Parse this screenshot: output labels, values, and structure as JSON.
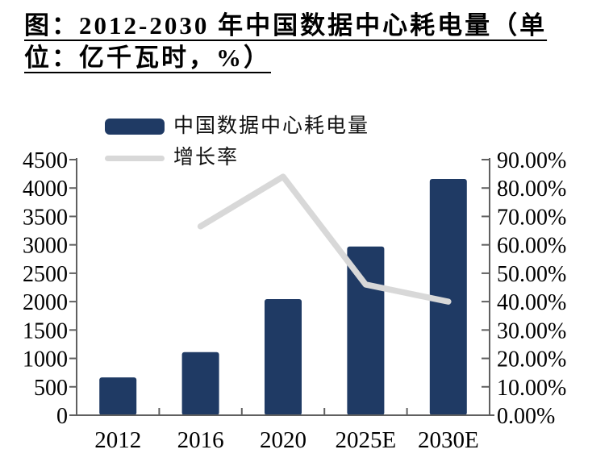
{
  "title": {
    "line1": "图：2012-2030 年中国数据中心耗电量（单",
    "line2": "位：亿千瓦时，%）"
  },
  "legend": {
    "series1": "中国数据中心耗电量",
    "series2": "增长率"
  },
  "colors": {
    "bar": "#1f3a64",
    "line": "#d8d8d8",
    "axis": "#606060",
    "text": "#000000"
  },
  "chart_data": {
    "type": "bar",
    "combo": "bar+line",
    "title": "图：2012-2030 年中国数据中心耗电量（单位：亿千瓦时，%）",
    "categories": [
      "2012",
      "2016",
      "2020",
      "2025E",
      "2030E"
    ],
    "series": [
      {
        "name": "中国数据中心耗电量",
        "type": "bar",
        "axis": "left",
        "unit": "亿千瓦时",
        "values": [
          665,
          1110,
          2045,
          2970,
          4160
        ]
      },
      {
        "name": "增长率",
        "type": "line",
        "axis": "right",
        "unit": "%",
        "values": [
          null,
          66.5,
          84,
          46,
          40
        ]
      }
    ],
    "left_axis": {
      "min": 0,
      "max": 4500,
      "step": 500,
      "ticks": [
        "4500",
        "4000",
        "3500",
        "3000",
        "2500",
        "2000",
        "1500",
        "1000",
        "500",
        "0"
      ]
    },
    "right_axis": {
      "min": 0,
      "max": 90,
      "step": 10,
      "ticks": [
        "90.00%",
        "80.00%",
        "70.00%",
        "60.00%",
        "50.00%",
        "40.00%",
        "30.00%",
        "20.00%",
        "10.00%",
        "0.00%"
      ]
    },
    "grid": false,
    "legend_position": "top-left"
  }
}
